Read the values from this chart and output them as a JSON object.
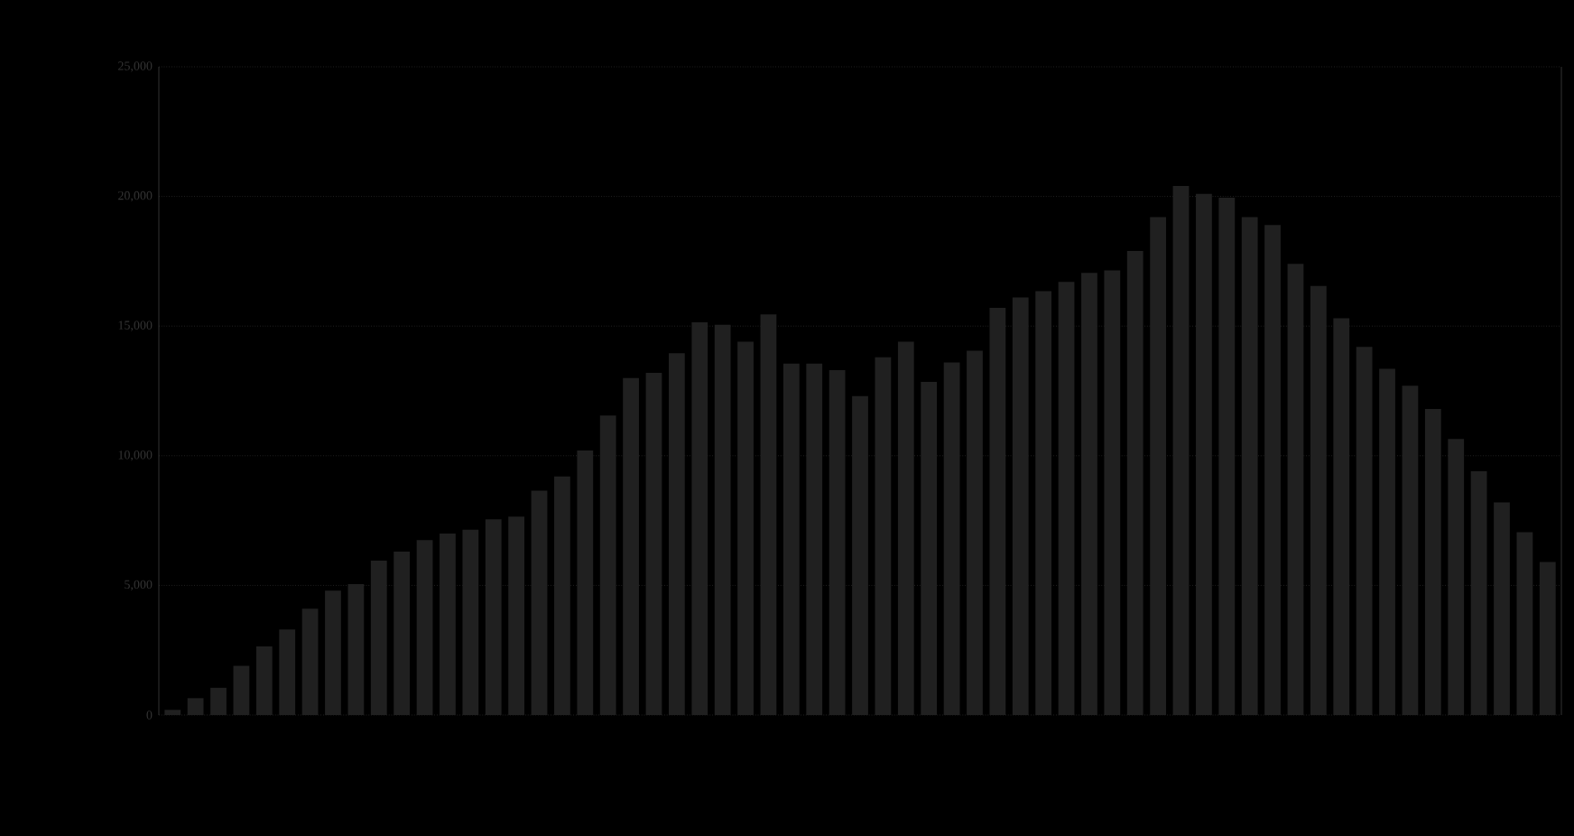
{
  "chart_data": {
    "type": "bar",
    "categories": [
      null,
      null,
      null,
      null,
      null,
      null,
      null,
      null,
      null,
      null,
      null,
      null,
      null,
      null,
      null,
      null,
      null,
      null,
      null,
      null,
      null,
      null,
      null,
      null,
      null,
      null,
      null,
      null,
      null,
      null,
      null,
      null,
      null,
      null,
      null,
      null,
      null,
      null,
      null,
      null,
      null,
      null,
      null,
      null,
      null,
      null,
      null,
      null,
      null,
      null,
      null,
      null,
      null,
      null,
      null,
      null,
      null,
      null,
      null,
      null,
      null
    ],
    "values": [
      200,
      650,
      1050,
      1900,
      2650,
      3300,
      4100,
      4800,
      5050,
      5950,
      6300,
      6750,
      7000,
      7150,
      7550,
      7650,
      8650,
      9200,
      10200,
      11550,
      13000,
      13200,
      13950,
      15150,
      15050,
      14400,
      15450,
      13550,
      13550,
      13300,
      12300,
      13800,
      14400,
      12850,
      13600,
      14050,
      15700,
      16100,
      16350,
      16700,
      17050,
      17150,
      17900,
      19200,
      20400,
      20100,
      19950,
      19200,
      18900,
      17400,
      16550,
      15300,
      14200,
      13350,
      12700,
      11800,
      10650,
      9400,
      8200,
      7050,
      5900
    ],
    "color": "#202020",
    "ylim": [
      0,
      25000
    ],
    "yticks": [
      0,
      {
        "value": 5000,
        "label": "5,000"
      },
      {
        "value": 10000,
        "label": "10,000"
      },
      {
        "value": 15000,
        "label": "15,000"
      },
      {
        "value": 20000,
        "label": "20,000"
      },
      {
        "value": 25000,
        "label": "25,000"
      }
    ],
    "grid": "y"
  }
}
